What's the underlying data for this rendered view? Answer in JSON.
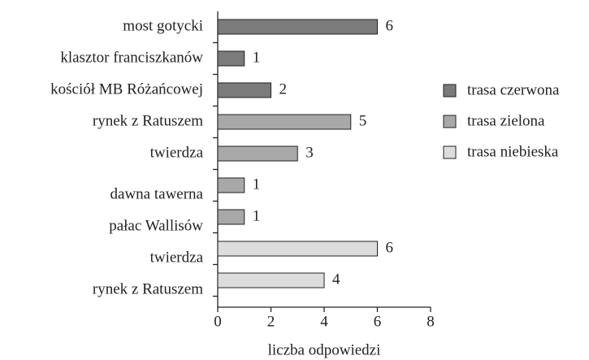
{
  "chart_data": {
    "type": "bar",
    "orientation": "horizontal",
    "xlabel": "liczba odpowiedzi",
    "categories": [
      "most gotycki",
      "klasztor franciszkanów",
      "kościół MB Różańcowej",
      "rynek z Ratuszem",
      "twierdza",
      "dawna tawerna",
      "pałac Wallisów",
      "twierdza",
      "rynek z Ratuszem"
    ],
    "series": [
      {
        "name": "trasa czerwona",
        "color": "#7b7b7b",
        "values": [
          6,
          1,
          2,
          null,
          null,
          null,
          null,
          null,
          null
        ]
      },
      {
        "name": "trasa zielona",
        "color": "#a8a8a8",
        "values": [
          null,
          null,
          null,
          5,
          3,
          1,
          1,
          null,
          null
        ]
      },
      {
        "name": "trasa niebieska",
        "color": "#dcdcdc",
        "values": [
          null,
          null,
          null,
          null,
          null,
          null,
          null,
          6,
          4
        ]
      }
    ],
    "xlim": [
      0,
      8
    ],
    "xticks": [
      0,
      2,
      4,
      6,
      8
    ],
    "legend": "right"
  }
}
